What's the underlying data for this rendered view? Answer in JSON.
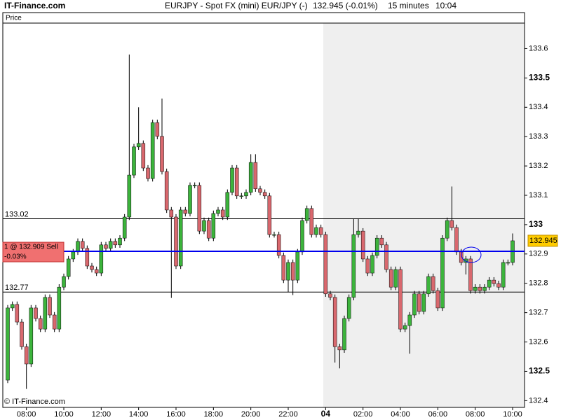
{
  "header": {
    "site": "IT-Finance.com",
    "instrument": "EURJPY - Spot FX (mini) EUR/JPY (-)",
    "quote": "132.945 (-0.01%)",
    "interval": "15 minutes",
    "time": "10:04"
  },
  "panel_label": "Price",
  "footer": "© IT-Finance.com",
  "chart_data": {
    "type": "candlestick",
    "categories": [
      null,
      null,
      null,
      null,
      "08:00",
      null,
      null,
      null,
      null,
      null,
      null,
      null,
      "10:00",
      null,
      null,
      null,
      null,
      null,
      null,
      null,
      "12:00",
      null,
      null,
      null,
      null,
      null,
      null,
      null,
      "14:00",
      null,
      null,
      null,
      null,
      null,
      null,
      null,
      "16:00",
      null,
      null,
      null,
      null,
      null,
      null,
      null,
      "18:00",
      null,
      null,
      null,
      null,
      null,
      null,
      null,
      "20:00",
      null,
      null,
      null,
      null,
      null,
      null,
      null,
      "22:00",
      null,
      null,
      null,
      null,
      null,
      null,
      null,
      "04",
      null,
      null,
      null,
      null,
      null,
      null,
      null,
      "02:00",
      null,
      null,
      null,
      null,
      null,
      null,
      null,
      "04:00",
      null,
      null,
      null,
      null,
      null,
      null,
      null,
      "06:00",
      null,
      null,
      null,
      null,
      null,
      null,
      null,
      "08:00",
      null,
      null,
      null,
      null,
      null,
      null,
      null,
      "10:00"
    ],
    "open": [
      132.47,
      132.716,
      132.728,
      132.668,
      132.584,
      132.525,
      132.716,
      132.68,
      132.644,
      132.752,
      132.692,
      132.644,
      132.787,
      132.823,
      132.883,
      132.907,
      132.943,
      132.919,
      132.859,
      132.847,
      132.835,
      132.931,
      132.919,
      132.943,
      132.931,
      132.954,
      133.026,
      133.169,
      133.265,
      133.277,
      133.193,
      133.157,
      133.348,
      133.301,
      133.181,
      133.05,
      133.026,
      132.859,
      133.05,
      133.038,
      133.134,
      133.134,
      132.978,
      133.014,
      132.954,
      133.038,
      133.05,
      133.026,
      133.11,
      133.193,
      133.098,
      133.098,
      133.11,
      133.212,
      133.122,
      133.11,
      133.098,
      132.966,
      132.966,
      132.895,
      132.811,
      132.871,
      132.811,
      132.907,
      133.014,
      133.055,
      132.966,
      132.99,
      132.966,
      132.764,
      132.752,
      132.584,
      132.573,
      132.68,
      132.752,
      132.966,
      132.978,
      132.883,
      132.835,
      132.895,
      132.954,
      132.931,
      132.847,
      132.787,
      132.847,
      132.644,
      132.656,
      132.692,
      132.764,
      132.704,
      132.764,
      132.823,
      132.775,
      132.716,
      132.954,
      133.014,
      132.99,
      132.907,
      132.871,
      132.883,
      132.775,
      132.787,
      132.775,
      132.787,
      132.811,
      132.799,
      132.787,
      132.871,
      132.871
    ],
    "high": [
      132.726,
      132.738,
      132.738,
      132.678,
      132.594,
      132.726,
      132.726,
      132.69,
      132.762,
      132.762,
      132.702,
      132.797,
      132.833,
      132.893,
      132.917,
      132.953,
      132.953,
      132.929,
      132.869,
      132.857,
      132.941,
      132.941,
      132.953,
      132.953,
      132.964,
      133.036,
      133.58,
      133.275,
      133.4,
      133.287,
      133.203,
      133.358,
      133.358,
      133.43,
      133.191,
      133.06,
      133.036,
      133.06,
      133.06,
      133.144,
      133.144,
      133.144,
      133.024,
      133.024,
      133.048,
      133.06,
      133.06,
      133.12,
      133.203,
      133.203,
      133.108,
      133.12,
      133.24,
      133.24,
      133.132,
      133.12,
      133.108,
      132.976,
      132.976,
      132.905,
      132.881,
      132.881,
      132.917,
      133.024,
      133.065,
      133.065,
      133.0,
      133.0,
      132.976,
      132.774,
      132.762,
      132.594,
      132.69,
      132.762,
      133.02,
      133.02,
      132.988,
      132.893,
      132.905,
      132.964,
      132.964,
      132.941,
      132.857,
      132.857,
      132.857,
      132.666,
      132.702,
      132.774,
      132.774,
      132.774,
      132.833,
      132.833,
      132.785,
      132.964,
      133.024,
      133.13,
      133.0,
      132.917,
      132.893,
      132.893,
      132.797,
      132.797,
      132.797,
      132.821,
      132.821,
      132.809,
      132.881,
      132.881,
      132.97
    ],
    "low": [
      132.46,
      132.706,
      132.658,
      132.574,
      132.44,
      132.515,
      132.67,
      132.634,
      132.634,
      132.682,
      132.634,
      132.634,
      132.777,
      132.813,
      132.873,
      132.897,
      132.909,
      132.849,
      132.837,
      132.825,
      132.825,
      132.909,
      132.909,
      132.921,
      132.921,
      132.944,
      133.016,
      133.159,
      133.255,
      133.183,
      133.147,
      133.147,
      133.291,
      133.171,
      133.04,
      132.75,
      132.849,
      132.849,
      133.028,
      133.028,
      133.124,
      132.968,
      132.968,
      132.944,
      132.944,
      133.028,
      133.016,
      133.016,
      133.1,
      133.088,
      133.088,
      133.088,
      133.1,
      133.112,
      133.1,
      133.088,
      132.956,
      132.956,
      132.885,
      132.801,
      132.77,
      132.76,
      132.801,
      132.897,
      133.004,
      132.956,
      132.956,
      132.956,
      132.754,
      132.742,
      132.53,
      132.51,
      132.563,
      132.67,
      132.742,
      132.956,
      132.873,
      132.825,
      132.825,
      132.885,
      132.921,
      132.837,
      132.777,
      132.777,
      132.634,
      132.634,
      132.56,
      132.682,
      132.694,
      132.694,
      132.754,
      132.765,
      132.706,
      132.706,
      132.944,
      132.98,
      132.897,
      132.861,
      132.83,
      132.765,
      132.765,
      132.765,
      132.765,
      132.777,
      132.789,
      132.777,
      132.777,
      132.861,
      132.861
    ],
    "close": [
      132.716,
      132.728,
      132.668,
      132.584,
      132.525,
      132.716,
      132.68,
      132.644,
      132.752,
      132.692,
      132.644,
      132.787,
      132.823,
      132.883,
      132.907,
      132.943,
      132.919,
      132.859,
      132.847,
      132.835,
      132.931,
      132.919,
      132.943,
      132.931,
      132.954,
      133.026,
      133.169,
      133.265,
      133.277,
      133.193,
      133.157,
      133.348,
      133.301,
      133.181,
      133.05,
      133.026,
      132.859,
      133.05,
      133.038,
      133.134,
      133.134,
      132.978,
      133.014,
      132.954,
      133.038,
      133.05,
      133.026,
      133.11,
      133.193,
      133.098,
      133.098,
      133.11,
      133.212,
      133.122,
      133.11,
      133.098,
      132.966,
      132.966,
      132.895,
      132.811,
      132.871,
      132.811,
      132.907,
      133.014,
      133.055,
      132.966,
      132.99,
      132.966,
      132.764,
      132.752,
      132.584,
      132.573,
      132.68,
      132.752,
      132.966,
      132.978,
      132.883,
      132.835,
      132.895,
      132.954,
      132.931,
      132.847,
      132.787,
      132.847,
      132.644,
      132.656,
      132.692,
      132.764,
      132.704,
      132.764,
      132.823,
      132.775,
      132.716,
      132.954,
      133.014,
      132.99,
      132.907,
      132.871,
      132.883,
      132.775,
      132.787,
      132.775,
      132.787,
      132.811,
      132.799,
      132.787,
      132.871,
      132.871,
      132.945
    ],
    "up_color": "#3cb43c",
    "down_color": "#d9686e",
    "ylim": [
      132.377,
      133.687
    ],
    "yticks": [
      132.4,
      132.5,
      132.6,
      132.7,
      132.8,
      132.9,
      133,
      133.1,
      133.2,
      133.3,
      133.4,
      133.5,
      133.6
    ],
    "hlines": [
      133.02,
      132.77
    ],
    "order": {
      "label": "1 @ 132.909 Sell",
      "value": 132.909,
      "change": "-0.03%",
      "color": "#0000ee"
    },
    "last_price": 132.945
  }
}
